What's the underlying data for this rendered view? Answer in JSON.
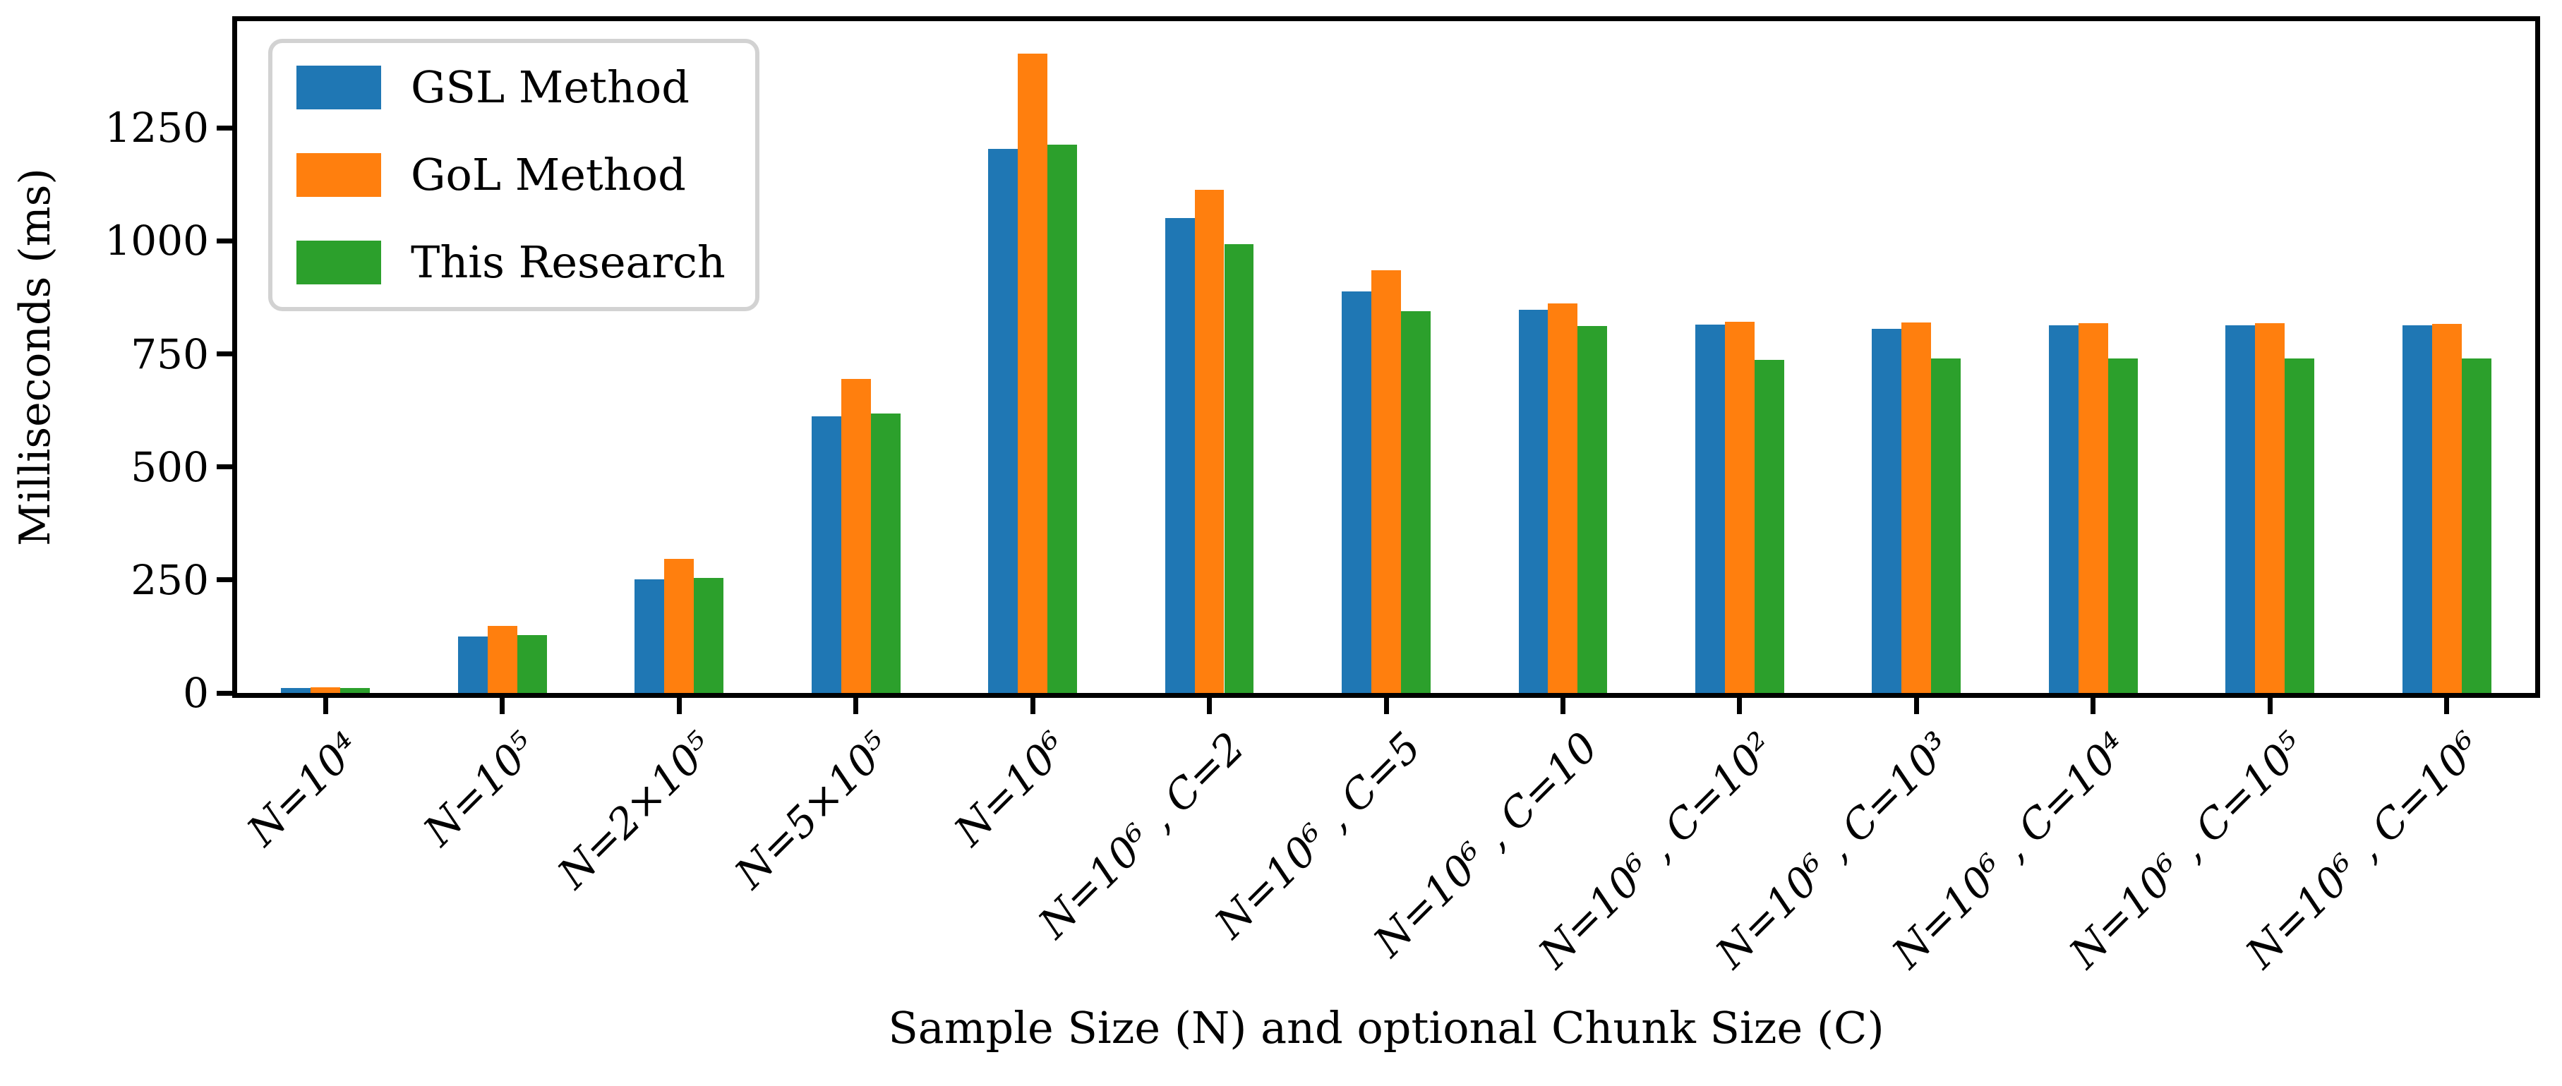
{
  "figure": {
    "background": "#ffffff",
    "axis_color": "#000000"
  },
  "chart_data": {
    "type": "bar",
    "title": "",
    "xlabel": "Sample Size (N) and optional Chunk Size (C)",
    "ylabel": "Milliseconds (ms)",
    "ylim": [
      0,
      1486
    ],
    "yticks": [
      0,
      250,
      500,
      750,
      1000,
      1250
    ],
    "grid": false,
    "legend_position": "upper left",
    "categories": [
      "N=10⁴",
      "N=10⁵",
      "N=2×10⁵",
      "N=5×10⁵",
      "N=10⁶",
      "N=10⁶ , C=2",
      "N=10⁶ , C=5",
      "N=10⁶ , C=10",
      "N=10⁶ , C=10²",
      "N=10⁶ , C=10³",
      "N=10⁶ , C=10⁴",
      "N=10⁶ , C=10⁵",
      "N=10⁶ , C=10⁶"
    ],
    "series": [
      {
        "name": "GSL Method",
        "color": "#1f77b4",
        "values": [
          11,
          125,
          252,
          612,
          1204,
          1051,
          888,
          848,
          815,
          805,
          813,
          813,
          813
        ]
      },
      {
        "name": "GoL Method",
        "color": "#ff7f0e",
        "values": [
          13,
          148,
          297,
          695,
          1414,
          1113,
          935,
          862,
          821,
          820,
          818,
          818,
          817
        ]
      },
      {
        "name": "This Research",
        "color": "#2ca02c",
        "values": [
          11,
          128,
          254,
          618,
          1213,
          993,
          845,
          812,
          737,
          740,
          740,
          740,
          740
        ]
      }
    ]
  }
}
